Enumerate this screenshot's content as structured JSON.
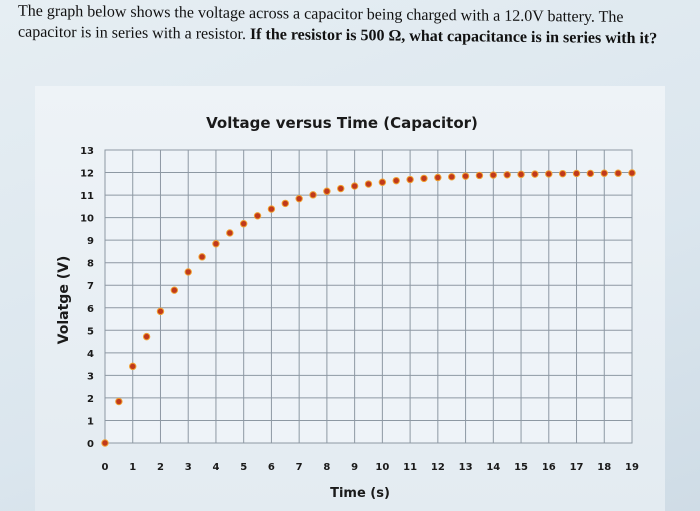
{
  "question": {
    "text_plain": "The graph below shows the voltage across a capacitor being charged with a 12.0V battery. The capacitor is in series with a resistor.",
    "text_bold": "If the resistor is 500 Ω, what capacitance is in series with it?"
  },
  "chart_data": {
    "type": "scatter",
    "title": "Voltage versus Time (Capacitor)",
    "xlabel": "Time (s)",
    "ylabel": "Volatge (V)",
    "xlim": [
      0,
      19
    ],
    "ylim": [
      0,
      13
    ],
    "xticks": [
      "0",
      "1",
      "2",
      "3",
      "4",
      "5",
      "6",
      "7",
      "8",
      "9",
      "10",
      "11",
      "12",
      "13",
      "14",
      "15",
      "16",
      "17",
      "18",
      "19"
    ],
    "yticks": [
      "0",
      "1",
      "2",
      "3",
      "4",
      "5",
      "6",
      "7",
      "8",
      "9",
      "10",
      "11",
      "12",
      "13"
    ],
    "grid": true,
    "marker_color": "#c0391b",
    "marker_edge_color": "#f0a030",
    "x": [
      0,
      0.5,
      1,
      1.5,
      2,
      2.5,
      3,
      3.5,
      4,
      4.5,
      5,
      5.5,
      6,
      6.5,
      7,
      7.5,
      8,
      8.5,
      9,
      9.5,
      10,
      10.5,
      11,
      11.5,
      12,
      12.5,
      13,
      13.5,
      14,
      14.5,
      15,
      15.5,
      16,
      16.5,
      17,
      17.5,
      18,
      18.5,
      19
    ],
    "y": [
      0,
      1.84,
      3.4,
      4.72,
      5.84,
      6.78,
      7.59,
      8.26,
      8.84,
      9.32,
      9.73,
      10.08,
      10.38,
      10.63,
      10.84,
      11.01,
      11.17,
      11.29,
      11.4,
      11.49,
      11.57,
      11.64,
      11.69,
      11.74,
      11.78,
      11.81,
      11.84,
      11.87,
      11.89,
      11.9,
      11.92,
      11.93,
      11.94,
      11.95,
      11.96,
      11.96,
      11.97,
      11.97,
      11.98
    ]
  }
}
